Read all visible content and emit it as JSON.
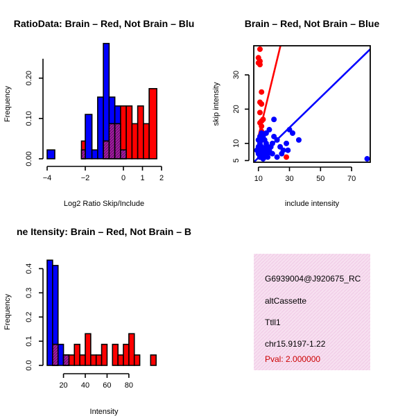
{
  "colors": {
    "brain": "#ff0000",
    "not_brain": "#0000ff",
    "overlap": "#a020a0",
    "info_bg": "#f7dff0",
    "pval": "#cc0000"
  },
  "chart_data": [
    {
      "id": "ratio_hist",
      "type": "bar",
      "title": "RatioData: Brain - Red, Not Brain - Blue",
      "title_shown": "RatioData: Brain – Red, Not Brain – Blu",
      "xlabel": "Log2 Ratio Skip/Include",
      "ylabel": "Frequency",
      "xlim": [
        -4,
        2
      ],
      "ylim": [
        0,
        0.27
      ],
      "xticks": [
        -4,
        -2,
        0,
        1,
        2
      ],
      "xtick_labels": [
        "−4",
        "−2",
        "0",
        "1",
        "2"
      ],
      "yticks": [
        0,
        0.1,
        0.2
      ],
      "ytick_labels": [
        "0.00",
        "0.10",
        "0.20"
      ],
      "series": [
        {
          "name": "Not Brain",
          "color": "blue",
          "bins": [
            {
              "x0": -4.0,
              "x1": -3.6,
              "value": 0.022
            },
            {
              "x0": -2.2,
              "x1": -2.0,
              "value": 0.022
            },
            {
              "x0": -2.0,
              "x1": -1.65,
              "value": 0.11
            },
            {
              "x0": -1.65,
              "x1": -1.35,
              "value": 0.022
            },
            {
              "x0": -1.35,
              "x1": -1.05,
              "value": 0.153
            },
            {
              "x0": -1.05,
              "x1": -0.75,
              "value": 0.286
            },
            {
              "x0": -0.75,
              "x1": -0.45,
              "value": 0.153
            },
            {
              "x0": -0.45,
              "x1": -0.15,
              "value": 0.131
            },
            {
              "x0": -0.15,
              "x1": 0.15,
              "value": 0.022
            }
          ]
        },
        {
          "name": "Brain",
          "color": "red",
          "bins": [
            {
              "x0": -2.2,
              "x1": -2.0,
              "value": 0.044
            },
            {
              "x0": -1.05,
              "x1": -0.75,
              "value": 0.044
            },
            {
              "x0": -0.75,
              "x1": -0.45,
              "value": 0.087
            },
            {
              "x0": -0.45,
              "x1": -0.15,
              "value": 0.087
            },
            {
              "x0": -0.15,
              "x1": 0.15,
              "value": 0.131
            },
            {
              "x0": 0.15,
              "x1": 0.45,
              "value": 0.131
            },
            {
              "x0": 0.45,
              "x1": 0.75,
              "value": 0.087
            },
            {
              "x0": 0.75,
              "x1": 1.05,
              "value": 0.131
            },
            {
              "x0": 1.05,
              "x1": 1.35,
              "value": 0.087
            },
            {
              "x0": 1.35,
              "x1": 1.75,
              "value": 0.174
            }
          ]
        }
      ]
    },
    {
      "id": "scatter",
      "type": "scatter",
      "title": "Brain - Red, Not Brain - Blue",
      "title_shown": "Brain – Red, Not Brain – Blue",
      "xlabel": "include intensity",
      "ylabel": "skip intensity",
      "xlim": [
        7,
        82
      ],
      "ylim": [
        4.5,
        38.5
      ],
      "xticks": [
        10,
        30,
        50,
        70
      ],
      "xtick_labels": [
        "10",
        "30",
        "50",
        "70"
      ],
      "yticks": [
        5,
        10,
        20,
        30
      ],
      "ytick_labels": [
        "5",
        "10",
        "20",
        "30"
      ],
      "series": [
        {
          "name": "Brain",
          "color": "red",
          "points": [
            [
              11,
              37.5
            ],
            [
              10,
              35
            ],
            [
              11,
              34
            ],
            [
              10,
              33.5
            ],
            [
              11,
              33
            ],
            [
              12,
              25
            ],
            [
              11,
              22
            ],
            [
              12,
              21.5
            ],
            [
              11,
              19
            ],
            [
              12,
              16.5
            ],
            [
              13,
              17
            ],
            [
              11,
              16
            ],
            [
              12,
              15
            ],
            [
              12,
              13.5
            ],
            [
              11,
              12
            ],
            [
              12,
              11
            ],
            [
              11,
              9
            ],
            [
              13,
              8
            ],
            [
              12,
              7
            ],
            [
              13,
              6
            ],
            [
              11,
              6
            ],
            [
              28,
              6
            ],
            [
              16,
              7
            ]
          ],
          "fit_line": [
            [
              10,
              12
            ],
            [
              25,
              40
            ]
          ]
        },
        {
          "name": "Not Brain",
          "color": "blue",
          "points": [
            [
              10,
              11
            ],
            [
              11,
              10
            ],
            [
              12,
              11
            ],
            [
              13,
              12
            ],
            [
              14,
              11
            ],
            [
              15,
              10
            ],
            [
              16,
              9
            ],
            [
              12,
              9
            ],
            [
              13,
              8
            ],
            [
              14,
              8
            ],
            [
              15,
              9
            ],
            [
              11,
              8
            ],
            [
              12,
              7
            ],
            [
              13,
              7
            ],
            [
              14,
              6
            ],
            [
              16,
              7
            ],
            [
              17,
              8
            ],
            [
              18,
              9
            ],
            [
              19,
              10
            ],
            [
              20,
              12
            ],
            [
              22,
              11
            ],
            [
              24,
              9
            ],
            [
              26,
              8
            ],
            [
              28,
              10
            ],
            [
              30,
              14
            ],
            [
              32,
              13
            ],
            [
              36,
              11
            ],
            [
              20,
              17
            ],
            [
              15,
              13
            ],
            [
              17,
              14
            ],
            [
              12,
              13
            ],
            [
              11,
              12
            ],
            [
              10,
              9
            ],
            [
              9,
              8
            ],
            [
              10,
              7
            ],
            [
              11,
              6
            ],
            [
              13,
              5.5
            ],
            [
              16,
              6
            ],
            [
              19,
              7
            ],
            [
              22,
              6
            ],
            [
              25,
              7
            ],
            [
              29,
              8
            ],
            [
              80,
              5.5
            ]
          ],
          "fit_line": [
            [
              7,
              4.5
            ],
            [
              82,
              37.5
            ]
          ]
        }
      ]
    },
    {
      "id": "intensity_hist",
      "type": "bar",
      "title": "Exon Line Itensity: Brain - Red, Not Brain - Blue",
      "title_shown": "ne Itensity: Brain – Red, Not Brain – B",
      "xlabel": "Intensity",
      "ylabel": "Frequency",
      "xlim": [
        5,
        110
      ],
      "ylim": [
        0,
        0.45
      ],
      "xticks": [
        20,
        40,
        60,
        80
      ],
      "xtick_labels": [
        "20",
        "40",
        "60",
        "80"
      ],
      "yticks": [
        0,
        0.1,
        0.2,
        0.3,
        0.4
      ],
      "ytick_labels": [
        "0.0",
        "0.1",
        "0.2",
        "0.3",
        "0.4"
      ],
      "series": [
        {
          "name": "Not Brain",
          "color": "blue",
          "bins": [
            {
              "x0": 5,
              "x1": 10,
              "value": 0.435
            },
            {
              "x0": 10,
              "x1": 15,
              "value": 0.413
            },
            {
              "x0": 15,
              "x1": 20,
              "value": 0.087
            },
            {
              "x0": 20,
              "x1": 25,
              "value": 0.043
            }
          ]
        },
        {
          "name": "Brain",
          "color": "red",
          "bins": [
            {
              "x0": 10,
              "x1": 15,
              "value": 0.087
            },
            {
              "x0": 20,
              "x1": 25,
              "value": 0.043
            },
            {
              "x0": 25,
              "x1": 30,
              "value": 0.043
            },
            {
              "x0": 30,
              "x1": 35,
              "value": 0.087
            },
            {
              "x0": 35,
              "x1": 40,
              "value": 0.043
            },
            {
              "x0": 40,
              "x1": 45,
              "value": 0.131
            },
            {
              "x0": 45,
              "x1": 50,
              "value": 0.043
            },
            {
              "x0": 50,
              "x1": 55,
              "value": 0.043
            },
            {
              "x0": 55,
              "x1": 60,
              "value": 0.087
            },
            {
              "x0": 65,
              "x1": 70,
              "value": 0.087
            },
            {
              "x0": 70,
              "x1": 75,
              "value": 0.043
            },
            {
              "x0": 75,
              "x1": 80,
              "value": 0.087
            },
            {
              "x0": 80,
              "x1": 85,
              "value": 0.131
            },
            {
              "x0": 85,
              "x1": 90,
              "value": 0.043
            },
            {
              "x0": 100,
              "x1": 105,
              "value": 0.043
            }
          ]
        }
      ]
    }
  ],
  "info_panel": {
    "probe_id": "G6939004@J920675_RC",
    "event_type": "altCassette",
    "gene": "Ttll1",
    "location": "chr15.9197-1.22",
    "pval": "Pval: 2.000000"
  }
}
